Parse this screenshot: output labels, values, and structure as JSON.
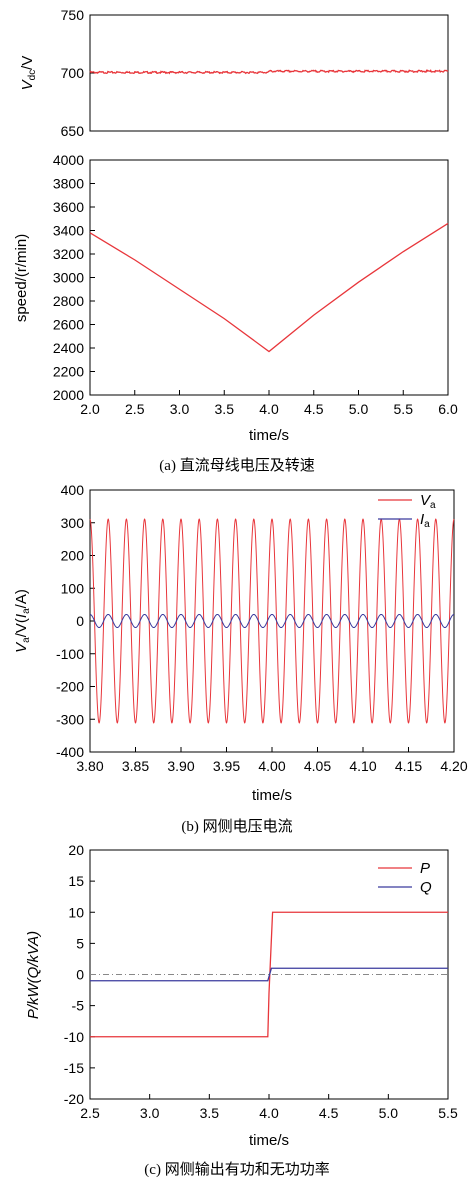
{
  "figure": {
    "captions": {
      "a": "(a) 直流母线电压及转速",
      "b": "(b) 网侧电压电流",
      "c": "(c) 网侧输出有功和无功功率"
    }
  },
  "chart_data": [
    {
      "id": "a_top",
      "type": "line",
      "ylabel": "V",
      "ylabel_sub": "dc",
      "ylabel_unit": "/V",
      "ylim": [
        650,
        750
      ],
      "yticks": [
        650,
        700,
        750
      ],
      "xlim": [
        2.0,
        6.0
      ],
      "series": [
        {
          "color": "#e8363b",
          "x": [
            2.0,
            4.0,
            4.0,
            6.0
          ],
          "y": [
            700.5,
            700.5,
            701.5,
            701.5
          ],
          "noise": 0.8
        }
      ],
      "grid": false
    },
    {
      "id": "a_bottom",
      "type": "line",
      "xlabel": "time/s",
      "ylabel": "speed/(r/min)",
      "ylim": [
        2000,
        4000
      ],
      "yticks": [
        2000,
        2200,
        2400,
        2600,
        2800,
        3000,
        3200,
        3400,
        3600,
        3800,
        4000
      ],
      "xlim": [
        2.0,
        6.0
      ],
      "xticks": [
        "2.0",
        "2.5",
        "3.0",
        "3.5",
        "4.0",
        "4.5",
        "5.0",
        "5.5",
        "6.0"
      ],
      "series": [
        {
          "color": "#e8363b",
          "x": [
            2.0,
            2.5,
            3.0,
            3.5,
            4.0,
            4.5,
            5.0,
            5.5,
            6.0
          ],
          "y": [
            3380,
            3150,
            2900,
            2650,
            2370,
            2680,
            2960,
            3220,
            3460
          ]
        }
      ],
      "grid": false
    },
    {
      "id": "b",
      "type": "line",
      "xlabel": "time/s",
      "ylabel_parts": [
        "V",
        "a",
        "/V(",
        "I",
        "a",
        "/A)"
      ],
      "ylim": [
        -400,
        400
      ],
      "yticks": [
        -400,
        -300,
        -200,
        -100,
        0,
        100,
        200,
        300,
        400
      ],
      "xlim": [
        3.8,
        4.2
      ],
      "xticks": [
        "3.80",
        "3.85",
        "3.90",
        "3.95",
        "4.00",
        "4.05",
        "4.10",
        "4.15",
        "4.20"
      ],
      "series": [
        {
          "name": "V",
          "name_sub": "a",
          "color": "#e8363b",
          "amplitude": 311,
          "frequency": 50,
          "phase": 0.25
        },
        {
          "name": "I",
          "name_sub": "a",
          "color": "#3b3b9e",
          "amplitude": 20,
          "frequency": 50,
          "phase": 0.25
        }
      ],
      "legend": "top-right",
      "grid": false
    },
    {
      "id": "c",
      "type": "line",
      "xlabel": "time/s",
      "ylabel": "P/kW(Q/kVA)",
      "ylim": [
        -20,
        20
      ],
      "yticks": [
        -20,
        -15,
        -10,
        -5,
        0,
        5,
        10,
        15,
        20
      ],
      "xlim": [
        2.5,
        5.5
      ],
      "xticks": [
        "2.5",
        "3.0",
        "3.5",
        "4.0",
        "4.5",
        "5.0",
        "5.5"
      ],
      "series": [
        {
          "name": "P",
          "color": "#e8363b",
          "x": [
            2.5,
            3.99,
            4.0,
            4.03,
            5.5
          ],
          "y": [
            -10,
            -10,
            -3,
            10,
            10
          ]
        },
        {
          "name": "Q",
          "color": "#3b3b9e",
          "x": [
            2.5,
            3.99,
            4.02,
            5.5
          ],
          "y": [
            -1,
            -1,
            1,
            1
          ]
        }
      ],
      "reference_line": {
        "y": 0,
        "style": "dash-dot",
        "color": "#888888"
      },
      "legend": "top-right",
      "grid": false
    }
  ]
}
